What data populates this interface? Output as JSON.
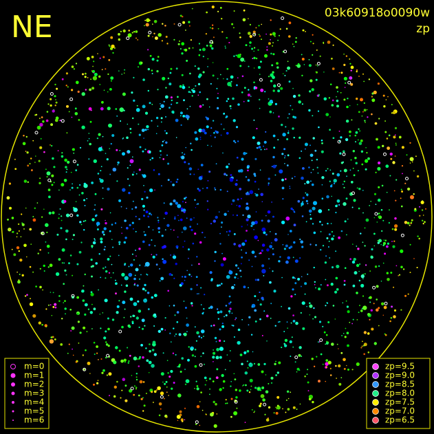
{
  "header": {
    "direction": "NE",
    "frame_id": "03k60918o0090w",
    "mode": "zp"
  },
  "magnitude_legend": [
    "m=0",
    "m=1",
    "m=2",
    "m=3",
    "m=4",
    "m=5",
    "m=6"
  ],
  "zp_legend": [
    "zp=9.5",
    "zp=9.0",
    "zp=8.5",
    "zp=8.0",
    "zp=7.5",
    "zp=7.0",
    "zp=6.5"
  ]
}
